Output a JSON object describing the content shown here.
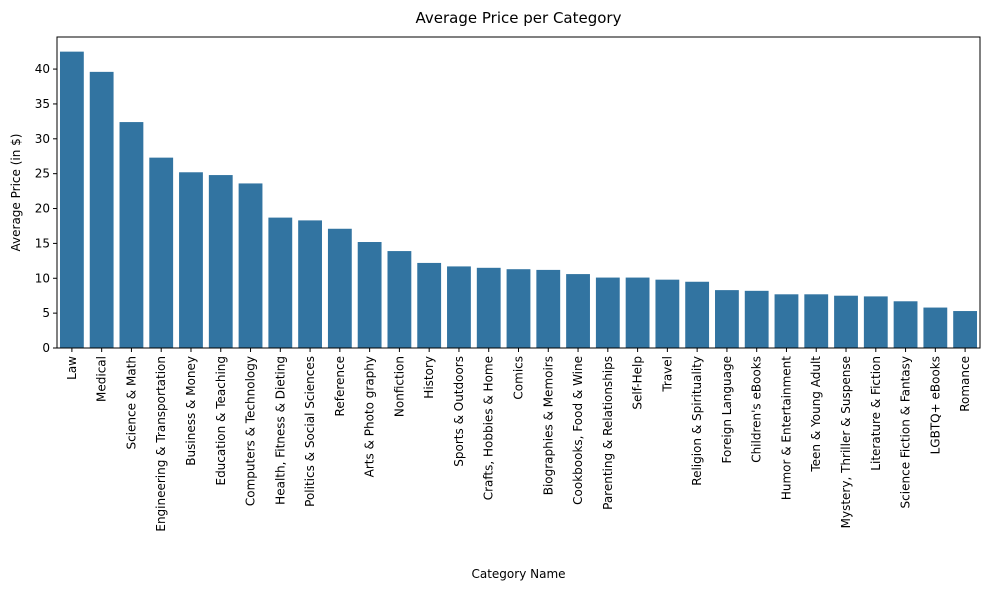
{
  "chart_data": {
    "type": "bar",
    "title": "Average Price per Category",
    "xlabel": "Category Name",
    "ylabel": "Average Price (in $)",
    "ylim": [
      0,
      44.6
    ],
    "yticks": [
      0,
      5,
      10,
      15,
      20,
      25,
      30,
      35,
      40
    ],
    "grid": false,
    "legend": "none",
    "bar_color": "#3274a1",
    "categories": [
      "Law",
      "Medical",
      "Science & Math",
      "Engineering & Transportation",
      "Business & Money",
      "Education & Teaching",
      "Computers & Technology",
      "Health, Fitness & Dieting",
      "Politics & Social Sciences",
      "Reference",
      "Arts & Photo graphy",
      "Nonfiction",
      "History",
      "Sports & Outdoors",
      "Crafts, Hobbies & Home",
      "Comics",
      "Biographies & Memoirs",
      "Cookbooks, Food & Wine",
      "Parenting & Relationships",
      "Self-Help",
      "Travel",
      "Religion & Spirituality",
      "Foreign Language",
      "Children's eBooks",
      "Humor & Entertainment",
      "Teen & Young Adult",
      "Mystery, Thriller & Suspense",
      "Literature & Fiction",
      "Science Fiction & Fantasy",
      "LGBTQ+ eBooks",
      "Romance"
    ],
    "values": [
      42.5,
      39.6,
      32.4,
      27.3,
      25.2,
      24.8,
      23.6,
      18.7,
      18.3,
      17.1,
      15.2,
      13.9,
      12.2,
      11.7,
      11.5,
      11.3,
      11.2,
      10.6,
      10.1,
      10.1,
      9.8,
      9.5,
      8.3,
      8.2,
      7.7,
      7.7,
      7.5,
      7.4,
      6.7,
      5.8,
      5.3
    ]
  }
}
